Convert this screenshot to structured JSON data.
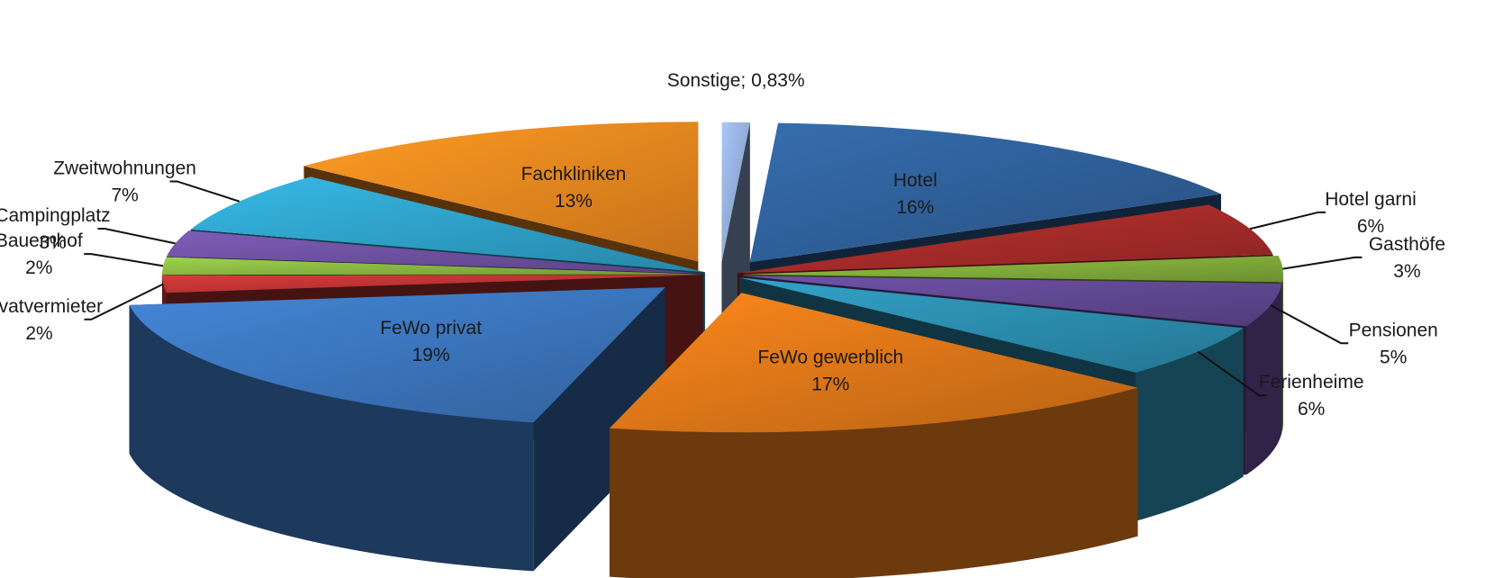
{
  "chart_data": {
    "type": "pie",
    "style": "3d-exploded",
    "title": "",
    "slices": [
      {
        "label": "Hotel",
        "pct_label": "16%",
        "value": 16,
        "color": "#2e5d95",
        "label_inside": true
      },
      {
        "label": "Hotel garni",
        "pct_label": "6%",
        "value": 6,
        "color": "#a22a28",
        "label_inside": false
      },
      {
        "label": "Gasthöfe",
        "pct_label": "3%",
        "value": 3,
        "color": "#7ea83a",
        "label_inside": false
      },
      {
        "label": "Pensionen",
        "pct_label": "5%",
        "value": 5,
        "color": "#5f4690",
        "label_inside": false
      },
      {
        "label": "Ferienheime",
        "pct_label": "6%",
        "value": 6,
        "color": "#2a8aaa",
        "label_inside": false
      },
      {
        "label": "FeWo gewerblich",
        "pct_label": "17%",
        "value": 17,
        "color": "#d77318",
        "label_inside": true
      },
      {
        "label": "FeWo privat",
        "pct_label": "19%",
        "value": 19,
        "color": "#3a72b8",
        "label_inside": true
      },
      {
        "label": "Privatvermieter",
        "pct_label": "2%",
        "value": 2,
        "color": "#b83232",
        "label_inside": false
      },
      {
        "label": "Bauernhof",
        "pct_label": "2%",
        "value": 2,
        "color": "#86b340",
        "label_inside": false
      },
      {
        "label": "Campingplatz",
        "pct_label": "3%",
        "value": 3,
        "color": "#6b4f9c",
        "label_inside": false
      },
      {
        "label": "Zweitwohnungen",
        "pct_label": "7%",
        "value": 7,
        "color": "#2e9ec4",
        "label_inside": false
      },
      {
        "label": "Fachkliniken",
        "pct_label": "13%",
        "value": 13,
        "color": "#e8841e",
        "label_inside": true
      },
      {
        "label": "Sonstige; 0,83%",
        "pct_label": "",
        "value": 0.83,
        "color": "#8fa9d4",
        "label_inside": false
      }
    ],
    "legend": "none"
  }
}
